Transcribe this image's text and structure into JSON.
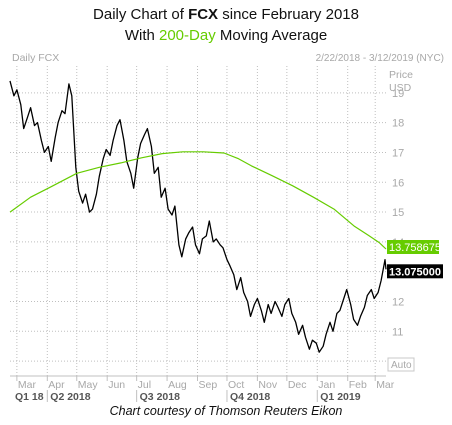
{
  "header": {
    "line1_prefix": "Daily Chart of ",
    "ticker": "FCX",
    "line1_suffix": " since February 2018",
    "line2_prefix": "With ",
    "ma_label": "200-Day",
    "line2_suffix": " Moving Average"
  },
  "caption": "Chart courtesy of Thomson Reuters Eikon",
  "colors": {
    "price": "#000000",
    "ma": "#66cc00",
    "ma_text": "#66cc00",
    "grid": "#bfbfbf",
    "axis_text": "#a8a8a8"
  },
  "chart_data": {
    "type": "line",
    "chart_label": "Daily FCX",
    "date_range": "2/22/2018 - 3/12/2019 (NYC)",
    "y_axis_title": [
      "Price",
      "USD"
    ],
    "ylim": [
      9.5,
      19.9
    ],
    "yticks": [
      10,
      11,
      12,
      13,
      14,
      15,
      16,
      17,
      18,
      19
    ],
    "grid": true,
    "x_ticks": [
      "Mar",
      "Apr",
      "May",
      "Jun",
      "Jul",
      "Aug",
      "Sep",
      "Oct",
      "Nov",
      "Dec",
      "Jan",
      "Feb",
      "Mar"
    ],
    "quarters": [
      "Q1 18",
      "Q2 2018",
      "Q3 2018",
      "Q4 2018",
      "Q1 2019"
    ],
    "auto_label": "Auto",
    "series": [
      {
        "name": "Price",
        "x": [
          "2018-02-22",
          "2018-02-26",
          "2018-03-01",
          "2018-03-05",
          "2018-03-08",
          "2018-03-12",
          "2018-03-15",
          "2018-03-19",
          "2018-03-22",
          "2018-03-26",
          "2018-03-29",
          "2018-04-02",
          "2018-04-05",
          "2018-04-09",
          "2018-04-12",
          "2018-04-16",
          "2018-04-19",
          "2018-04-23",
          "2018-04-26",
          "2018-04-30",
          "2018-05-03",
          "2018-05-07",
          "2018-05-10",
          "2018-05-14",
          "2018-05-17",
          "2018-05-21",
          "2018-05-24",
          "2018-05-28",
          "2018-05-31",
          "2018-06-04",
          "2018-06-07",
          "2018-06-11",
          "2018-06-14",
          "2018-06-18",
          "2018-06-21",
          "2018-06-25",
          "2018-06-28",
          "2018-07-02",
          "2018-07-05",
          "2018-07-09",
          "2018-07-12",
          "2018-07-16",
          "2018-07-19",
          "2018-07-23",
          "2018-07-26",
          "2018-07-30",
          "2018-08-02",
          "2018-08-06",
          "2018-08-09",
          "2018-08-13",
          "2018-08-16",
          "2018-08-20",
          "2018-08-23",
          "2018-08-27",
          "2018-08-30",
          "2018-09-03",
          "2018-09-06",
          "2018-09-10",
          "2018-09-13",
          "2018-09-17",
          "2018-09-20",
          "2018-09-24",
          "2018-09-27",
          "2018-10-01",
          "2018-10-04",
          "2018-10-08",
          "2018-10-11",
          "2018-10-15",
          "2018-10-18",
          "2018-10-22",
          "2018-10-25",
          "2018-10-29",
          "2018-11-01",
          "2018-11-05",
          "2018-11-08",
          "2018-11-12",
          "2018-11-15",
          "2018-11-19",
          "2018-11-22",
          "2018-11-26",
          "2018-11-29",
          "2018-12-03",
          "2018-12-06",
          "2018-12-10",
          "2018-12-13",
          "2018-12-17",
          "2018-12-20",
          "2018-12-24",
          "2018-12-27",
          "2018-12-31",
          "2019-01-03",
          "2019-01-07",
          "2019-01-10",
          "2019-01-14",
          "2019-01-17",
          "2019-01-21",
          "2019-01-24",
          "2019-01-28",
          "2019-01-31",
          "2019-02-04",
          "2019-02-07",
          "2019-02-11",
          "2019-02-14",
          "2019-02-18",
          "2019-02-21",
          "2019-02-25",
          "2019-02-28",
          "2019-03-04",
          "2019-03-07",
          "2019-03-11",
          "2019-03-12"
        ],
        "y": [
          19.4,
          18.9,
          19.1,
          18.6,
          17.8,
          18.2,
          18.5,
          17.9,
          18.0,
          17.4,
          17.0,
          17.2,
          16.7,
          17.5,
          18.0,
          18.4,
          18.3,
          19.3,
          18.9,
          16.5,
          15.7,
          15.3,
          15.6,
          15.0,
          15.1,
          15.6,
          16.2,
          16.8,
          17.1,
          16.9,
          17.4,
          17.9,
          18.1,
          17.4,
          16.7,
          16.3,
          15.8,
          16.8,
          17.3,
          17.6,
          17.8,
          17.2,
          16.3,
          16.5,
          15.5,
          15.8,
          15.1,
          14.9,
          15.2,
          13.9,
          13.5,
          14.1,
          14.3,
          14.5,
          13.9,
          13.6,
          14.1,
          14.2,
          14.7,
          14.0,
          14.1,
          13.9,
          13.8,
          13.4,
          13.2,
          12.9,
          12.4,
          12.8,
          12.3,
          12.0,
          11.5,
          11.9,
          12.1,
          11.7,
          11.3,
          11.9,
          11.6,
          12.0,
          11.8,
          11.5,
          11.9,
          12.1,
          11.6,
          11.3,
          10.9,
          11.2,
          10.8,
          10.4,
          10.7,
          10.6,
          10.3,
          10.5,
          10.9,
          11.3,
          11.0,
          11.6,
          11.7,
          12.1,
          12.4,
          11.9,
          11.4,
          11.2,
          11.5,
          11.8,
          12.2,
          12.4,
          12.1,
          12.3,
          12.7,
          13.4,
          13.08
        ]
      },
      {
        "name": "200-Day MA",
        "x": [
          "2018-02-22",
          "2018-03-15",
          "2018-04-05",
          "2018-05-01",
          "2018-05-24",
          "2018-06-15",
          "2018-07-06",
          "2018-07-27",
          "2018-08-17",
          "2018-09-07",
          "2018-09-28",
          "2018-10-12",
          "2018-10-26",
          "2018-11-16",
          "2018-12-07",
          "2018-12-28",
          "2019-01-18",
          "2019-02-08",
          "2019-02-22",
          "2019-03-05",
          "2019-03-12"
        ],
        "y": [
          15.0,
          15.5,
          15.85,
          16.3,
          16.5,
          16.65,
          16.82,
          16.96,
          17.02,
          17.02,
          16.98,
          16.8,
          16.55,
          16.22,
          15.88,
          15.5,
          15.1,
          14.52,
          14.22,
          13.98,
          13.76
        ]
      }
    ],
    "price_labels": {
      "ma": "13.758675",
      "last": "13.075000"
    }
  }
}
